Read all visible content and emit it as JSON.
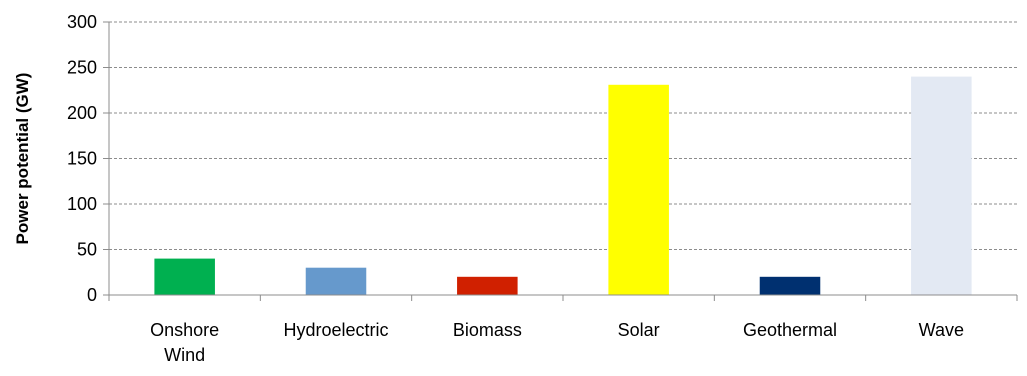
{
  "chart_data": {
    "type": "bar",
    "title": "",
    "xlabel": "",
    "ylabel": "Power potential (GW)",
    "ylim": [
      0,
      300
    ],
    "yticks": [
      0,
      50,
      100,
      150,
      200,
      250,
      300
    ],
    "grid": true,
    "legend": "none",
    "categories": [
      [
        "Onshore",
        "Wind"
      ],
      [
        "Hydroelectric"
      ],
      [
        "Biomass"
      ],
      [
        "Solar"
      ],
      [
        "Geothermal"
      ],
      [
        "Wave"
      ]
    ],
    "values": [
      40,
      30,
      20,
      231,
      20,
      240
    ],
    "colors": [
      "#00b050",
      "#6699cc",
      "#d02000",
      "#ffff00",
      "#003070",
      "#e3e9f3"
    ],
    "axis_color": "#8c8c8c",
    "grid_color": "#8c8c8c"
  }
}
